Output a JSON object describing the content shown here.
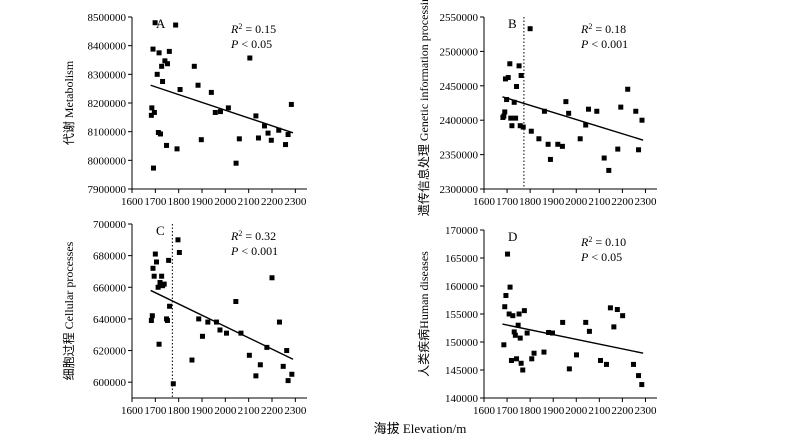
{
  "figure": {
    "xlabel": "海拔 Elevation/m"
  },
  "chart_data": [
    {
      "type": "scatter",
      "panel": "A",
      "ylabel": "代谢 Metabolism",
      "xlim": [
        1600,
        2350
      ],
      "ylim": [
        7900000,
        8500000
      ],
      "xticks": [
        1600,
        1700,
        1800,
        1900,
        2000,
        2100,
        2200,
        2300
      ],
      "yticks": [
        7900000,
        8000000,
        8100000,
        8200000,
        8300000,
        8400000,
        8500000
      ],
      "ytick_labels": [
        "7900000",
        "8000000",
        "8100000",
        "8200000",
        "8300000",
        "8400000",
        "8500000"
      ],
      "stats": {
        "r2": "= 0.15",
        "p": "< 0.05"
      },
      "threshold_x": null,
      "trendline": {
        "x": [
          1680,
          2290
        ],
        "y": [
          8262000,
          8096000
        ]
      },
      "points": {
        "x": [
          1683,
          1685,
          1690,
          1692,
          1696,
          1699,
          1708,
          1713,
          1716,
          1722,
          1727,
          1731,
          1741,
          1748,
          1752,
          1760,
          1787,
          1793,
          1806,
          1867,
          1883,
          1897,
          1940,
          1957,
          1979,
          2013,
          2046,
          2060,
          2105,
          2131,
          2142,
          2168,
          2183,
          2197,
          2229,
          2258,
          2269,
          2283
        ],
        "y": [
          8157000,
          8183000,
          8388000,
          7973000,
          8167000,
          8480000,
          8300000,
          8097000,
          8375000,
          8092000,
          8328000,
          8275000,
          8347000,
          8052000,
          8337000,
          8380000,
          8472000,
          8040000,
          8247000,
          8328000,
          8262000,
          8072000,
          8237000,
          8167000,
          8170000,
          8183000,
          7990000,
          8075000,
          8357000,
          8155000,
          8078000,
          8120000,
          8095000,
          8070000,
          8105000,
          8055000,
          8090000,
          8195000
        ]
      }
    },
    {
      "type": "scatter",
      "panel": "B",
      "ylabel": "遗传信息处理 Genetic information processing",
      "xlim": [
        1600,
        2350
      ],
      "ylim": [
        2300000,
        2550000
      ],
      "xticks": [
        1600,
        1700,
        1800,
        1900,
        2000,
        2100,
        2200,
        2300
      ],
      "yticks": [
        2300000,
        2350000,
        2400000,
        2450000,
        2500000,
        2550000
      ],
      "ytick_labels": [
        "2300000",
        "2350000",
        "2400000",
        "2450000",
        "2500000",
        "2550000"
      ],
      "stats": {
        "r2": "= 0.18",
        "p": "< 0.001"
      },
      "threshold_x": 1773,
      "trendline": {
        "x": [
          1680,
          2290
        ],
        "y": [
          2434000,
          2371000
        ]
      },
      "points": {
        "x": [
          1682,
          1686,
          1690,
          1693,
          1698,
          1705,
          1712,
          1716,
          1721,
          1731,
          1737,
          1741,
          1752,
          1757,
          1761,
          1770,
          1800,
          1805,
          1838,
          1862,
          1878,
          1888,
          1920,
          1940,
          1955,
          1967,
          2017,
          2041,
          2053,
          2089,
          2121,
          2141,
          2180,
          2193,
          2223,
          2258,
          2270,
          2285
        ],
        "y": [
          2404000,
          2406000,
          2412000,
          2460000,
          2430000,
          2462000,
          2482000,
          2403000,
          2392000,
          2426000,
          2403000,
          2449000,
          2479000,
          2392000,
          2465000,
          2390000,
          2533000,
          2384000,
          2373000,
          2413000,
          2365000,
          2343000,
          2365000,
          2362000,
          2427000,
          2410000,
          2373000,
          2393000,
          2416000,
          2413000,
          2345000,
          2327000,
          2358000,
          2419000,
          2445000,
          2413000,
          2357000,
          2400000
        ]
      }
    },
    {
      "type": "scatter",
      "panel": "C",
      "ylabel": "细胞过程 Cellular processes",
      "xlim": [
        1600,
        2350
      ],
      "ylim": [
        590000,
        700000
      ],
      "xticks": [
        1600,
        1700,
        1800,
        1900,
        2000,
        2100,
        2200,
        2300
      ],
      "yticks": [
        600000,
        620000,
        640000,
        660000,
        680000,
        700000
      ],
      "ytick_labels": [
        "600000",
        "620000",
        "640000",
        "660000",
        "680000",
        "700000"
      ],
      "stats": {
        "r2": "= 0.32",
        "p": "< 0.001"
      },
      "threshold_x": 1773,
      "trendline": {
        "x": [
          1680,
          2290
        ],
        "y": [
          658000,
          614500
        ]
      },
      "points": {
        "x": [
          1683,
          1687,
          1690,
          1695,
          1700,
          1705,
          1712,
          1716,
          1720,
          1727,
          1731,
          1738,
          1748,
          1752,
          1757,
          1761,
          1777,
          1797,
          1803,
          1857,
          1886,
          1902,
          1925,
          1962,
          1977,
          2005,
          2045,
          2067,
          2103,
          2131,
          2150,
          2178,
          2200,
          2232,
          2248,
          2263,
          2269,
          2285
        ],
        "y": [
          639000,
          642000,
          672000,
          667000,
          681000,
          676000,
          660000,
          624000,
          663000,
          667000,
          661000,
          662000,
          640000,
          639000,
          677000,
          648000,
          599000,
          690000,
          682000,
          614000,
          640000,
          629000,
          638000,
          638000,
          633000,
          631000,
          651000,
          631000,
          617000,
          604000,
          611000,
          622000,
          666000,
          638000,
          610000,
          620000,
          601000,
          605000
        ]
      }
    },
    {
      "type": "scatter",
      "panel": "D",
      "ylabel": "人类疾病Human diseases",
      "xlim": [
        1600,
        2350
      ],
      "ylim": [
        140000,
        170000
      ],
      "xticks": [
        1600,
        1700,
        1800,
        1900,
        2000,
        2100,
        2200,
        2300
      ],
      "yticks": [
        140000,
        145000,
        150000,
        155000,
        160000,
        165000,
        170000
      ],
      "ytick_labels": [
        "140000",
        "145000",
        "150000",
        "155000",
        "160000",
        "165000",
        "170000"
      ],
      "stats": {
        "r2": "= 0.10",
        "p": "< 0.05"
      },
      "threshold_x": null,
      "trendline": {
        "x": [
          1680,
          2290
        ],
        "y": [
          153200,
          148000
        ]
      },
      "points": {
        "x": [
          1686,
          1690,
          1695,
          1702,
          1709,
          1713,
          1719,
          1725,
          1731,
          1736,
          1741,
          1748,
          1752,
          1757,
          1761,
          1768,
          1775,
          1787,
          1807,
          1817,
          1860,
          1880,
          1897,
          1941,
          1970,
          2001,
          2041,
          2057,
          2105,
          2131,
          2148,
          2163,
          2178,
          2201,
          2248,
          2270,
          2284
        ],
        "y": [
          149500,
          156300,
          158300,
          165700,
          155000,
          159800,
          146700,
          154700,
          151800,
          151200,
          147000,
          153000,
          155000,
          150700,
          146200,
          145000,
          155600,
          151600,
          147000,
          148000,
          148200,
          151700,
          151600,
          153500,
          145200,
          147700,
          153500,
          151900,
          146700,
          146000,
          156100,
          152700,
          155800,
          154700,
          146000,
          144000,
          142400
        ]
      }
    }
  ]
}
